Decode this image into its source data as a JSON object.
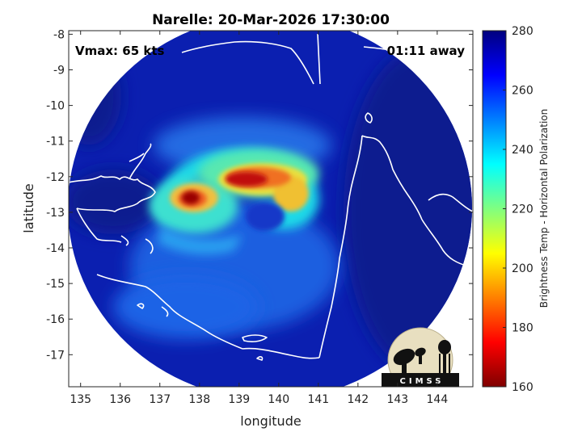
{
  "title": "Narelle: 20-Mar-2026 17:30:00",
  "annotations": {
    "vmax": "Vmax: 65 kts",
    "time_away": "01:11 away"
  },
  "logo_text": "CIMSS",
  "chart_data": {
    "type": "heatmap",
    "xlabel": "longitude",
    "ylabel": "latitude",
    "xlim": [
      134.7,
      144.9
    ],
    "ylim": [
      -17.9,
      -7.9
    ],
    "xticks": [
      "135",
      "136",
      "137",
      "138",
      "139",
      "140",
      "141",
      "142",
      "143",
      "144"
    ],
    "yticks": [
      "-8",
      "-9",
      "-10",
      "-11",
      "-12",
      "-13",
      "-14",
      "-15",
      "-16",
      "-17"
    ],
    "storm_center": {
      "lon": 139.7,
      "lat": -12.8
    },
    "colorbar": {
      "label": "Brightness Temp - Horizontal Polarization",
      "range": [
        160,
        280
      ],
      "ticks": [
        "280",
        "260",
        "240",
        "220",
        "200",
        "180",
        "160"
      ],
      "colormap": "jet"
    },
    "colors": {
      "cold_core": "#8b0000",
      "warm_background": "#0a1a8f",
      "coast": "#ffffff"
    }
  }
}
